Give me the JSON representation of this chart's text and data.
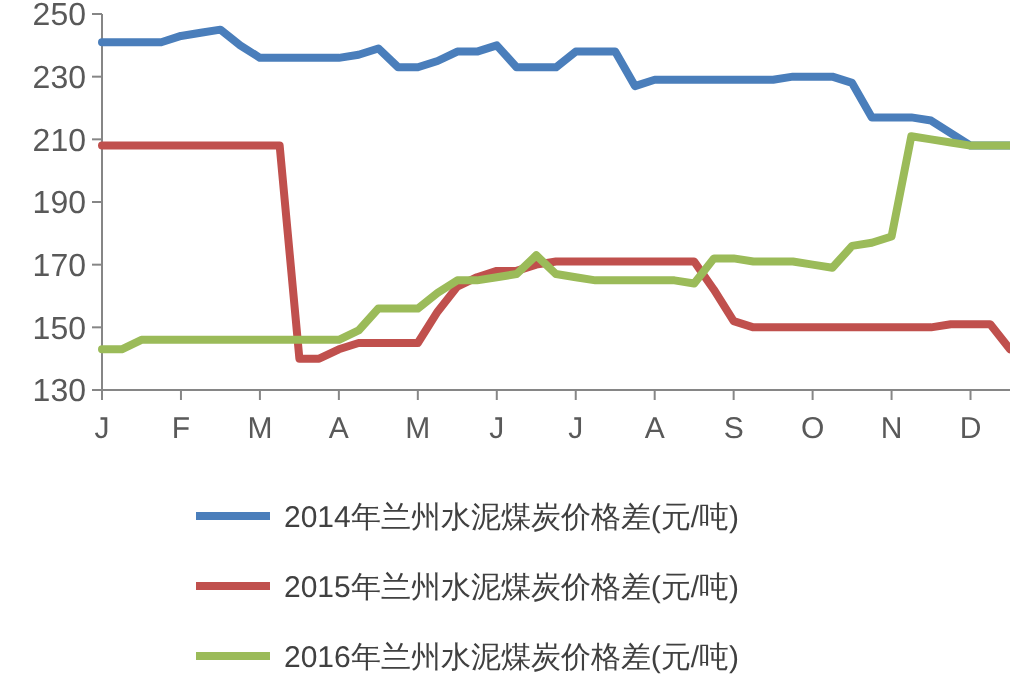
{
  "chart_data": {
    "type": "line",
    "categories": [
      "J",
      null,
      null,
      null,
      "F",
      null,
      null,
      null,
      "M",
      null,
      null,
      null,
      "A",
      null,
      null,
      null,
      "M",
      null,
      null,
      null,
      "J",
      null,
      null,
      null,
      "J",
      null,
      null,
      null,
      "A",
      null,
      null,
      null,
      "S",
      null,
      null,
      null,
      "O",
      null,
      null,
      null,
      "N",
      null,
      null,
      null,
      "D",
      null,
      null
    ],
    "ylim": [
      130,
      250
    ],
    "yticks": [
      130,
      150,
      170,
      190,
      210,
      230,
      250
    ],
    "grid": false,
    "legend": "bottom",
    "marker": "none",
    "line_style": "solid",
    "series": [
      {
        "name": "2014年兰州水泥煤炭价格差(元/吨)",
        "color": "#4a7ebb",
        "values": [
          241,
          241,
          241,
          241,
          243,
          244,
          245,
          240,
          236,
          236,
          236,
          236,
          236,
          237,
          239,
          233,
          233,
          235,
          238,
          238,
          240,
          233,
          233,
          233,
          238,
          238,
          238,
          227,
          229,
          229,
          229,
          229,
          229,
          229,
          229,
          230,
          230,
          230,
          228,
          217,
          217,
          217,
          216,
          212,
          208,
          208,
          208
        ]
      },
      {
        "name": "2015年兰州水泥煤炭价格差(元/吨)",
        "color": "#c0504d",
        "values": [
          208,
          208,
          208,
          208,
          208,
          208,
          208,
          208,
          208,
          208,
          140,
          140,
          143,
          145,
          145,
          145,
          145,
          155,
          163,
          166,
          168,
          168,
          170,
          171,
          171,
          171,
          171,
          171,
          171,
          171,
          171,
          162,
          152,
          150,
          150,
          150,
          150,
          150,
          150,
          150,
          150,
          150,
          150,
          151,
          151,
          151,
          143
        ]
      },
      {
        "name": "2016年兰州水泥煤炭价格差(元/吨)",
        "color": "#9bbb59",
        "values": [
          143,
          143,
          146,
          146,
          146,
          146,
          146,
          146,
          146,
          146,
          146,
          146,
          146,
          149,
          156,
          156,
          156,
          161,
          165,
          165,
          166,
          167,
          173,
          167,
          166,
          165,
          165,
          165,
          165,
          165,
          164,
          172,
          172,
          171,
          171,
          171,
          170,
          169,
          176,
          177,
          179,
          211,
          210,
          209,
          208,
          208,
          208
        ]
      }
    ]
  }
}
